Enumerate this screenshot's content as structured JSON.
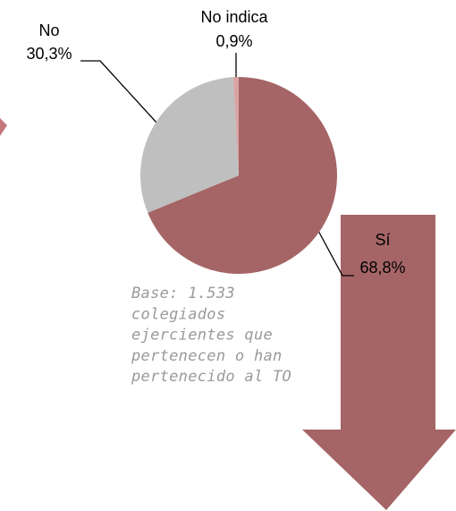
{
  "chart_data": {
    "type": "pie",
    "categories": [
      "Sí",
      "No",
      "No indica"
    ],
    "values": [
      68.8,
      30.3,
      0.9
    ],
    "value_labels": [
      "68,8%",
      "30,3%",
      "0,9%"
    ],
    "colors": [
      "#a56566",
      "#bfbfbf",
      "#d9a3a3"
    ],
    "note_lines": [
      "Base: 1.533",
      "colegiados",
      "ejercientes que",
      "pertenecen o han",
      "pertenecido al TO"
    ]
  }
}
